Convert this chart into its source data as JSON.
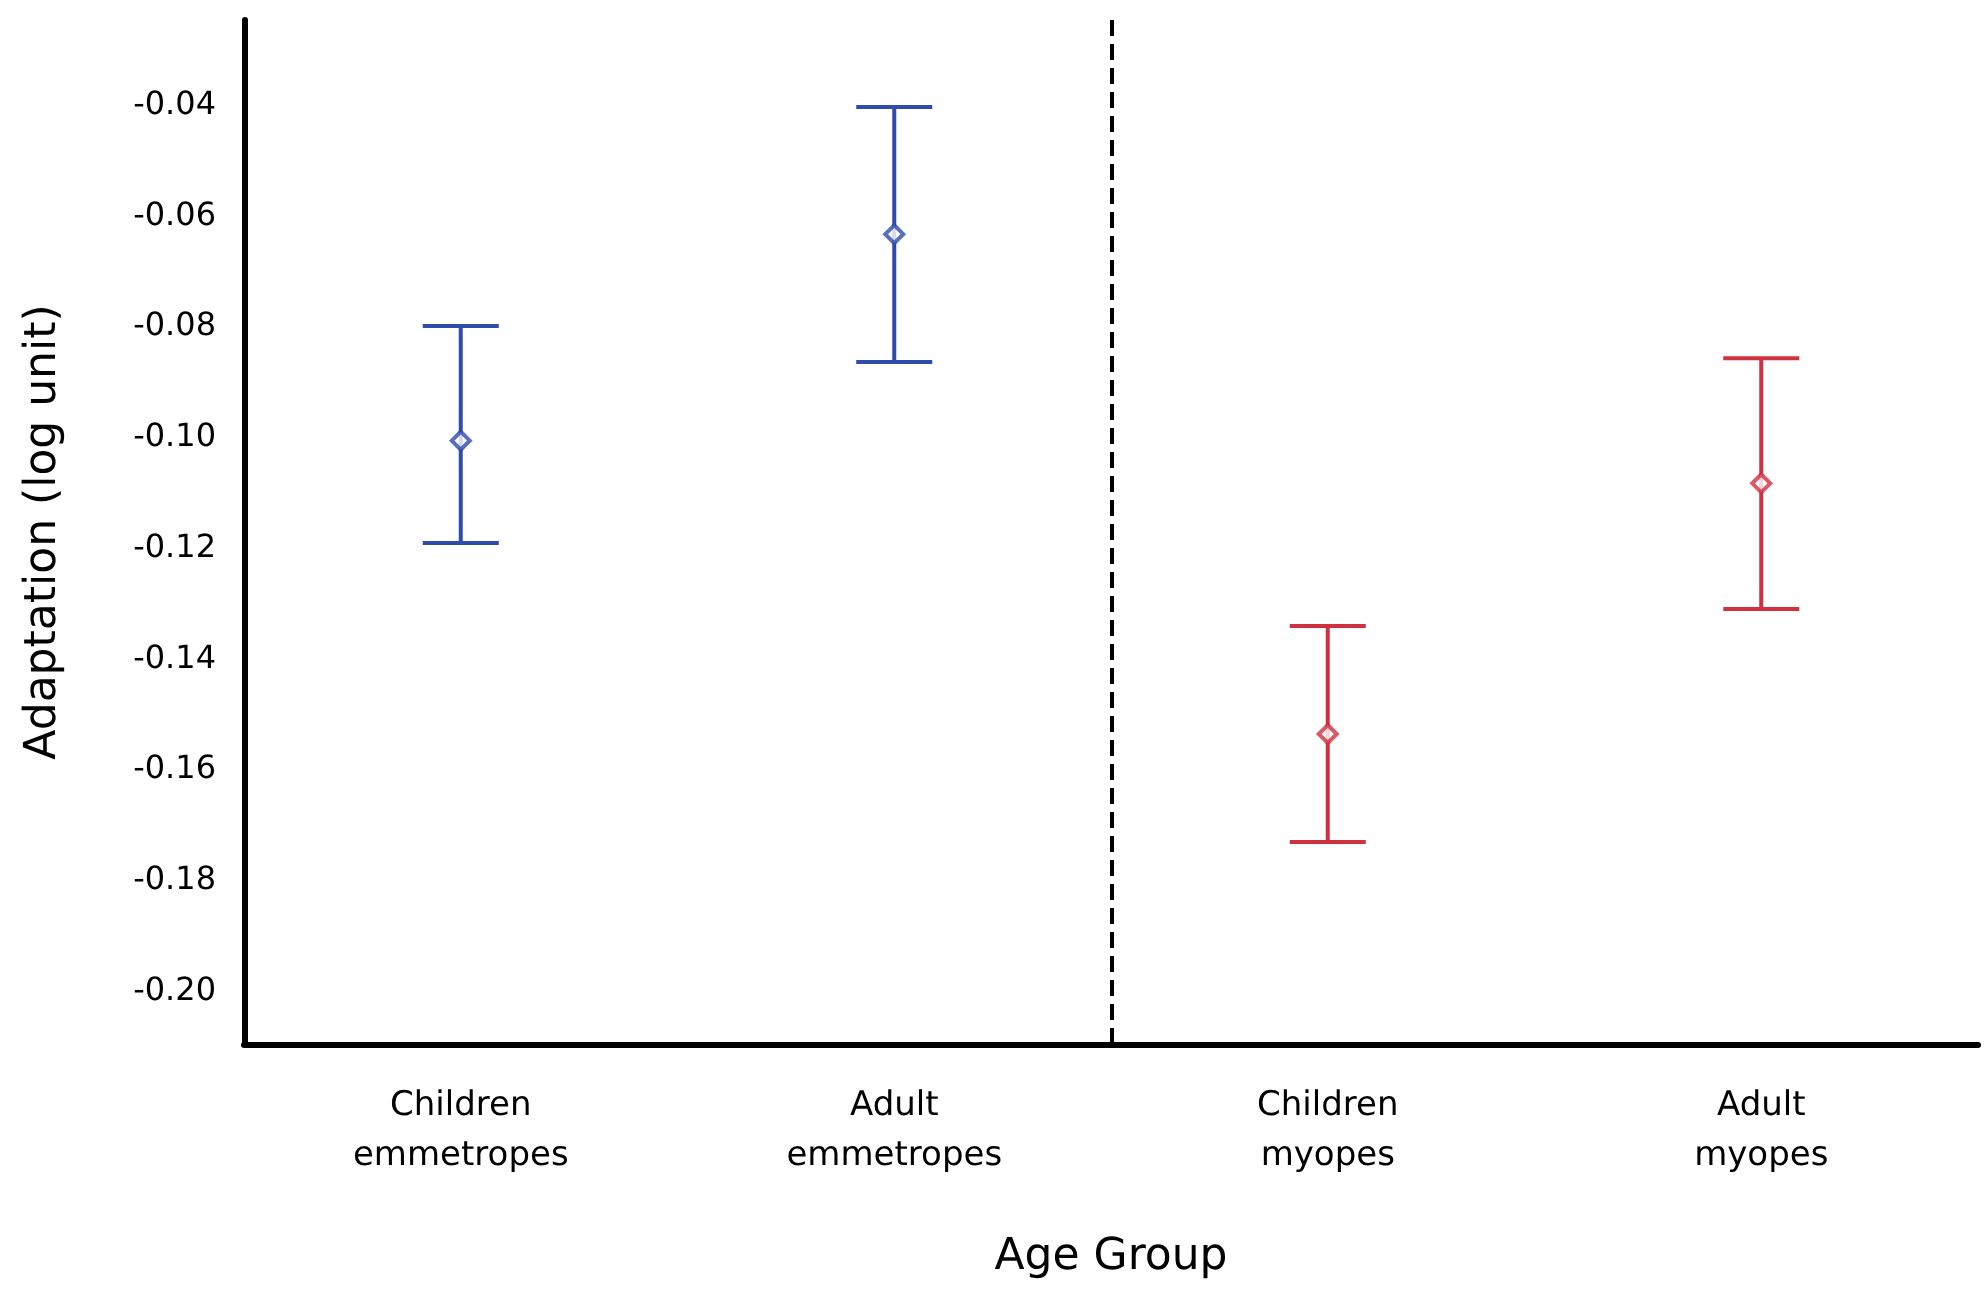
{
  "chart_data": {
    "type": "scatter",
    "xlabel": "Age Group",
    "ylabel": "Adaptation (log unit)",
    "categories": [
      "Children\nemmetropes",
      "Adult\nemmetropes",
      "Children\nmyopes",
      "Adult\nmyopes"
    ],
    "series": [
      {
        "color": "#2f4bab",
        "values": [
          -0.101,
          -0.0637,
          null,
          null
        ],
        "errors": [
          [
            -0.1195,
            -0.0803
          ],
          [
            -0.0868,
            -0.0407
          ],
          null,
          null
        ]
      },
      {
        "color": "#d0303f",
        "values": [
          null,
          null,
          -0.154,
          -0.1087
        ],
        "errors": [
          null,
          null,
          [
            -0.1735,
            -0.1345
          ],
          [
            -0.1314,
            -0.0861
          ]
        ]
      }
    ],
    "ylim": [
      -0.21,
      -0.025
    ],
    "yticks": [
      {
        "value": -0.2,
        "label": "-0.20"
      },
      {
        "value": -0.18,
        "label": "-0.18"
      },
      {
        "value": -0.16,
        "label": "-0.16"
      },
      {
        "value": -0.14,
        "label": "-0.14"
      },
      {
        "value": -0.12,
        "label": "-0.12"
      },
      {
        "value": -0.1,
        "label": "-0.10"
      },
      {
        "value": -0.08,
        "label": "-0.08"
      },
      {
        "value": -0.06,
        "label": "-0.06"
      },
      {
        "value": -0.04,
        "label": "-0.04"
      }
    ],
    "marker": "diamond"
  }
}
